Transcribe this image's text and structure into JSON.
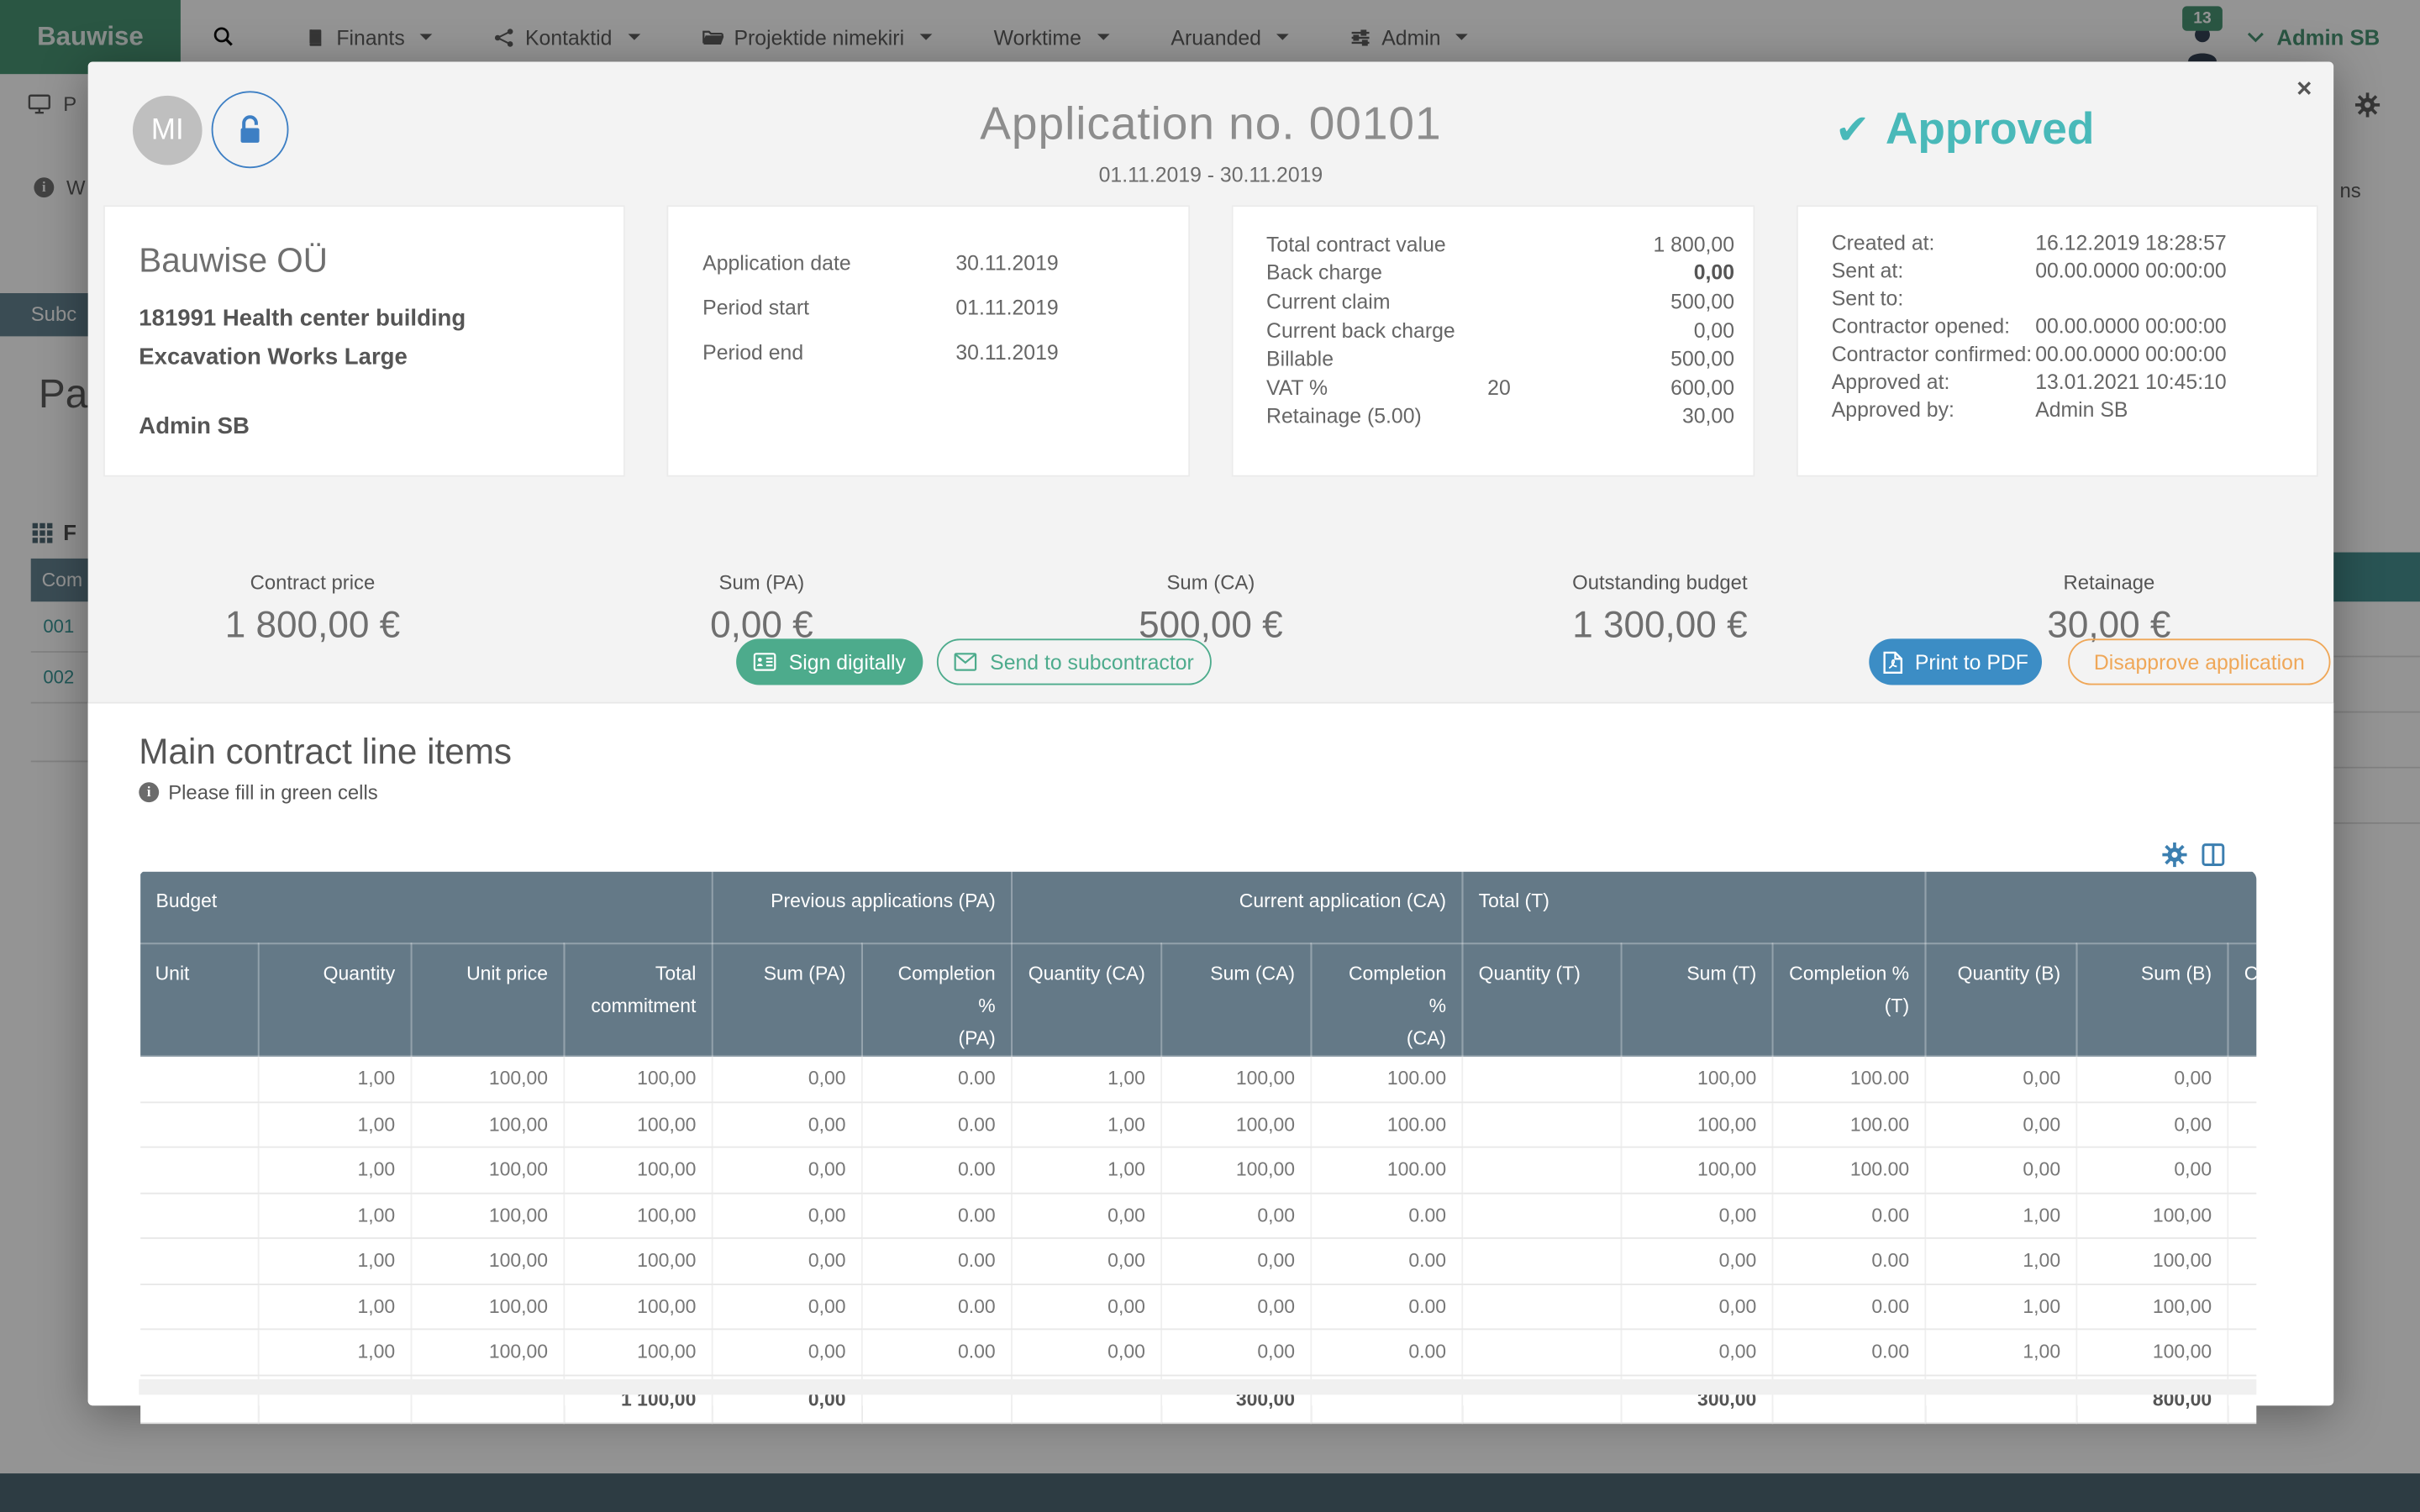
{
  "nav": {
    "brand": "Bauwise",
    "items": [
      {
        "label": "Finants",
        "icon": "book"
      },
      {
        "label": "Kontaktid",
        "icon": "share"
      },
      {
        "label": "Projektide nimekiri",
        "icon": "folder"
      },
      {
        "label": "Worktime",
        "icon": ""
      },
      {
        "label": "Aruanded",
        "icon": ""
      },
      {
        "label": "Admin",
        "icon": "sliders"
      }
    ],
    "notification_count": "13",
    "user": "Admin SB"
  },
  "background": {
    "toolbar_item": "P",
    "info_item": "W",
    "active_tab": "Subc",
    "page_heading": "Pa",
    "files_label": "F",
    "table_header": "Com",
    "row_links": [
      "001",
      "002"
    ],
    "right_fragment": "ns"
  },
  "modal": {
    "avatar": "MI",
    "title": "Application no. 00101",
    "period": "01.11.2019 - 30.11.2019",
    "status": "Approved",
    "close_label": "×",
    "company_card": {
      "name": "Bauwise OÜ",
      "project": "181991 Health center building",
      "contract": "Excavation Works Large",
      "person": "Admin SB"
    },
    "dates_card": [
      {
        "label": "Application date",
        "value": "30.11.2019"
      },
      {
        "label": "Period start",
        "value": "01.11.2019"
      },
      {
        "label": "Period end",
        "value": "30.11.2019"
      }
    ],
    "values_card": [
      {
        "label": "Total contract value",
        "mid": "",
        "value": "1 800,00",
        "bold": false
      },
      {
        "label": "Back charge",
        "mid": "",
        "value": "0,00",
        "bold": true
      },
      {
        "label": "Current claim",
        "mid": "",
        "value": "500,00",
        "bold": false
      },
      {
        "label": "Current back charge",
        "mid": "",
        "value": "0,00",
        "bold": false
      },
      {
        "label": "Billable",
        "mid": "",
        "value": "500,00",
        "bold": false
      },
      {
        "label": "VAT %",
        "mid": "20",
        "value": "600,00",
        "bold": false
      },
      {
        "label": "Retainage (5.00)",
        "mid": "",
        "value": "30,00",
        "bold": false
      }
    ],
    "log_card": [
      {
        "label": "Created at:",
        "value": "16.12.2019 18:28:57"
      },
      {
        "label": "Sent at:",
        "value": "00.00.0000 00:00:00"
      },
      {
        "label": "Sent to:",
        "value": ""
      },
      {
        "label": "Contractor opened:",
        "value": "00.00.0000 00:00:00"
      },
      {
        "label": "Contractor confirmed:",
        "value": "00.00.0000 00:00:00"
      },
      {
        "label": "Approved at:",
        "value": "13.01.2021 10:45:10"
      },
      {
        "label": "Approved by:",
        "value": "Admin SB"
      }
    ],
    "summary": [
      {
        "label": "Contract price",
        "value": "1 800,00 €"
      },
      {
        "label": "Sum (PA)",
        "value": "0,00 €"
      },
      {
        "label": "Sum (CA)",
        "value": "500,00 €"
      },
      {
        "label": "Outstanding budget",
        "value": "1 300,00 €"
      },
      {
        "label": "Retainage",
        "value": "30,00 €"
      }
    ],
    "buttons": {
      "sign": "Sign digitally",
      "send": "Send to subcontractor",
      "print": "Print to PDF",
      "disapprove": "Disapprove application"
    },
    "section": {
      "title": "Main contract line items",
      "hint": "Please fill in green cells"
    },
    "table": {
      "groups": [
        {
          "label": "Budget",
          "span": 4,
          "align": "left"
        },
        {
          "label": "Previous applications (PA)",
          "span": 2,
          "align": "right"
        },
        {
          "label": "Current application (CA)",
          "span": 3,
          "align": "right"
        },
        {
          "label": "Total (T)",
          "span": 3,
          "align": "left"
        },
        {
          "label": "",
          "span": 3,
          "align": "left"
        }
      ],
      "columns": [
        "Unit",
        "Quantity",
        "Unit price",
        "Total\ncommitment",
        "Sum (PA)",
        "Completion %\n(PA)",
        "Quantity (CA)",
        "Sum (CA)",
        "Completion %\n(CA)",
        "Quantity (T)",
        "Sum (T)",
        "Completion %\n(T)",
        "Quantity (B)",
        "Sum (B)",
        "C"
      ],
      "widths": [
        77,
        99,
        99,
        96,
        97,
        97,
        97,
        97,
        98,
        103,
        98,
        99,
        98,
        98,
        90
      ],
      "aligns": [
        "left",
        "right",
        "right",
        "right",
        "right",
        "right",
        "right",
        "right",
        "right",
        "left",
        "right",
        "right",
        "right",
        "right",
        "left"
      ],
      "rows": [
        [
          "",
          "1,00",
          "100,00",
          "100,00",
          "0,00",
          "0.00",
          "1,00",
          "100,00",
          "100.00",
          "",
          "100,00",
          "100.00",
          "0,00",
          "0,00",
          ""
        ],
        [
          "",
          "1,00",
          "100,00",
          "100,00",
          "0,00",
          "0.00",
          "1,00",
          "100,00",
          "100.00",
          "",
          "100,00",
          "100.00",
          "0,00",
          "0,00",
          ""
        ],
        [
          "",
          "1,00",
          "100,00",
          "100,00",
          "0,00",
          "0.00",
          "1,00",
          "100,00",
          "100.00",
          "",
          "100,00",
          "100.00",
          "0,00",
          "0,00",
          ""
        ],
        [
          "",
          "1,00",
          "100,00",
          "100,00",
          "0,00",
          "0.00",
          "0,00",
          "0,00",
          "0.00",
          "",
          "0,00",
          "0.00",
          "1,00",
          "100,00",
          ""
        ],
        [
          "",
          "1,00",
          "100,00",
          "100,00",
          "0,00",
          "0.00",
          "0,00",
          "0,00",
          "0.00",
          "",
          "0,00",
          "0.00",
          "1,00",
          "100,00",
          ""
        ],
        [
          "",
          "1,00",
          "100,00",
          "100,00",
          "0,00",
          "0.00",
          "0,00",
          "0,00",
          "0.00",
          "",
          "0,00",
          "0.00",
          "1,00",
          "100,00",
          ""
        ],
        [
          "",
          "1,00",
          "100,00",
          "100,00",
          "0,00",
          "0.00",
          "0,00",
          "0,00",
          "0.00",
          "",
          "0,00",
          "0.00",
          "1,00",
          "100,00",
          ""
        ]
      ],
      "footer": [
        "",
        "",
        "",
        "1 100,00",
        "0,00",
        "",
        "",
        "300,00",
        "",
        "",
        "300,00",
        "",
        "",
        "800,00",
        ""
      ]
    },
    "colors": {
      "status": "#49b9b9",
      "header": "#647987",
      "green": "#4dab8c",
      "blue": "#3c8dc5",
      "orange": "#efa758",
      "brand": "#3e8e6c"
    }
  }
}
